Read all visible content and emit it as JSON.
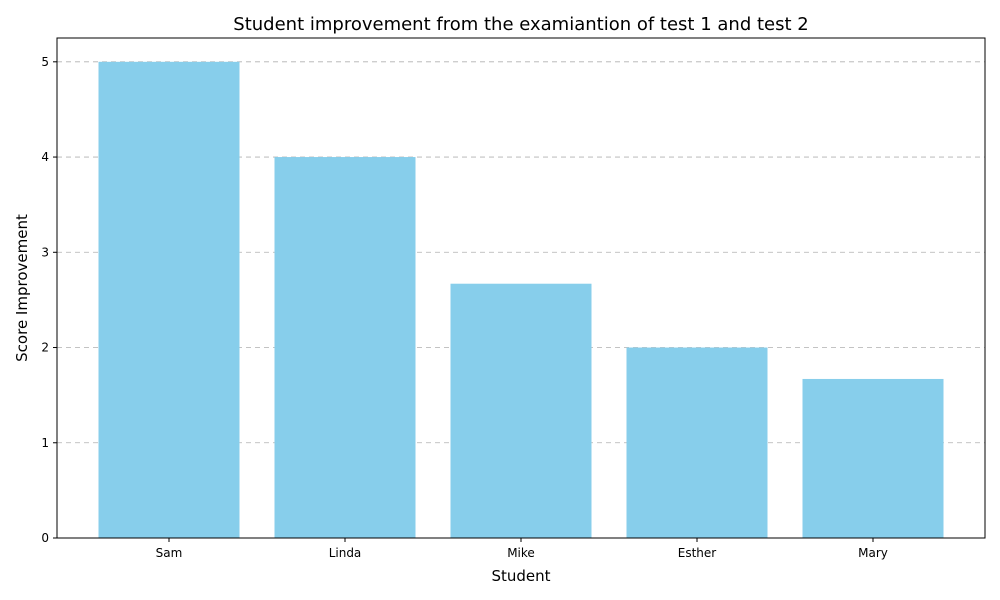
{
  "chart_data": {
    "type": "bar",
    "title": "Student improvement from the examiantion of test 1 and test 2",
    "xlabel": "Student",
    "ylabel": "Score Improvement",
    "categories": [
      "Sam",
      "Linda",
      "Mike",
      "Esther",
      "Mary"
    ],
    "values": [
      5,
      4,
      2.67,
      2,
      1.67
    ],
    "ylim": [
      0,
      5.25
    ],
    "yticks": [
      0,
      1,
      2,
      3,
      4,
      5
    ],
    "grid": "y-dashed",
    "bar_color": "#87CEEB"
  }
}
